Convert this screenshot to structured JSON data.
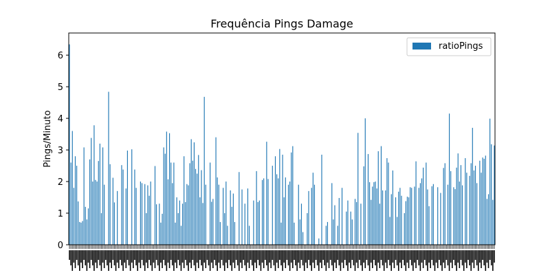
{
  "chart_data": {
    "type": "bar",
    "title": "Frequência Pings Damage",
    "xlabel": "",
    "ylabel": "Pings/Minuto",
    "ylim": [
      0,
      6.7
    ],
    "yticks": [
      "0",
      "1",
      "2",
      "3",
      "4",
      "5",
      "6"
    ],
    "legend": {
      "position": "top-right"
    },
    "grid": false,
    "bar_color": "#1f77b4",
    "series": [
      {
        "name": "ratioPings",
        "values": [
          6.34,
          2.6,
          3.6,
          1.8,
          2.8,
          2.5,
          1.37,
          0.72,
          0.7,
          0.75,
          3.08,
          1.2,
          0.8,
          1.15,
          2.7,
          3.38,
          2.0,
          3.78,
          2.05,
          2.0,
          2.65,
          3.2,
          1.0,
          3.08,
          1.9,
          0.0,
          0.0,
          4.84,
          2.55,
          0.0,
          2.12,
          1.34,
          0.0,
          1.7,
          0.0,
          0.0,
          2.52,
          2.38,
          0.0,
          1.78,
          2.98,
          0.0,
          0.0,
          3.02,
          0.0,
          2.38,
          1.8,
          0.0,
          0.0,
          2.0,
          1.95,
          0.0,
          1.92,
          1.0,
          1.88,
          1.55,
          2.0,
          0.0,
          0.0,
          2.49,
          1.28,
          0.0,
          1.3,
          0.7,
          0.98,
          3.08,
          2.88,
          3.58,
          2.07,
          3.53,
          2.6,
          1.95,
          2.6,
          0.7,
          1.5,
          1.0,
          1.4,
          0.6,
          1.3,
          2.8,
          1.35,
          1.92,
          1.88,
          2.58,
          3.34,
          2.66,
          3.24,
          2.4,
          2.25,
          2.84,
          1.5,
          2.36,
          1.32,
          4.68,
          1.9,
          0.0,
          0.0,
          2.6,
          1.36,
          1.45,
          0.0,
          3.4,
          2.13,
          1.9,
          0.72,
          0.0,
          1.8,
          1.0,
          2.0,
          0.6,
          0.0,
          1.72,
          1.2,
          1.62,
          0.72,
          0.0,
          0.0,
          2.3,
          0.0,
          1.75,
          0.0,
          1.3,
          0.0,
          1.78,
          0.6,
          0.0,
          0.0,
          1.4,
          0.0,
          2.33,
          1.35,
          1.4,
          0.0,
          2.05,
          2.1,
          0.0,
          3.26,
          2.08,
          0.0,
          0.0,
          2.5,
          0.0,
          2.8,
          2.23,
          2.1,
          3.03,
          0.7,
          2.85,
          1.5,
          2.13,
          0.0,
          1.9,
          2.0,
          2.92,
          3.12,
          0.7,
          0.0,
          0.0,
          1.9,
          0.8,
          1.3,
          0.4,
          0.0,
          0.0,
          1.0,
          1.7,
          0.0,
          1.8,
          2.28,
          1.9,
          0.0,
          0.0,
          0.2,
          0.0,
          2.85,
          0.0,
          0.0,
          0.6,
          0.72,
          0.0,
          0.0,
          1.95,
          0.8,
          1.25,
          0.0,
          0.6,
          1.48,
          0.0,
          1.8,
          0.0,
          0.0,
          1.05,
          1.4,
          0.0,
          1.05,
          0.8,
          0.0,
          1.45,
          1.35,
          3.54,
          0.0,
          1.3,
          0.0,
          2.48,
          4.0,
          0.0,
          2.87,
          1.98,
          1.42,
          1.84,
          1.98,
          2.0,
          1.78,
          2.96,
          1.3,
          3.12,
          1.72,
          0.0,
          1.72,
          2.74,
          2.6,
          0.88,
          1.6,
          2.35,
          0.0,
          1.5,
          0.88,
          1.68,
          1.8,
          1.55,
          0.0,
          1.0,
          1.38,
          1.52,
          1.5,
          1.82,
          1.8,
          0.0,
          1.84,
          2.64,
          0.0,
          1.8,
          1.95,
          2.1,
          2.44,
          0.0,
          2.6,
          1.75,
          1.22,
          0.0,
          1.85,
          1.92,
          0.0,
          0.0,
          1.82,
          0.0,
          1.64,
          0.0,
          2.43,
          2.58,
          0.0,
          1.9,
          4.15,
          2.33,
          0.0,
          1.82,
          1.76,
          2.44,
          2.89,
          2.0,
          2.52,
          1.88,
          0.0,
          2.74,
          2.28,
          0.0,
          2.18,
          2.58,
          3.7,
          2.35,
          2.5,
          1.95,
          0.0,
          2.66,
          2.28,
          2.76,
          2.72,
          2.82,
          1.45,
          1.6,
          3.99,
          3.18,
          1.42,
          3.14
        ]
      }
    ]
  }
}
